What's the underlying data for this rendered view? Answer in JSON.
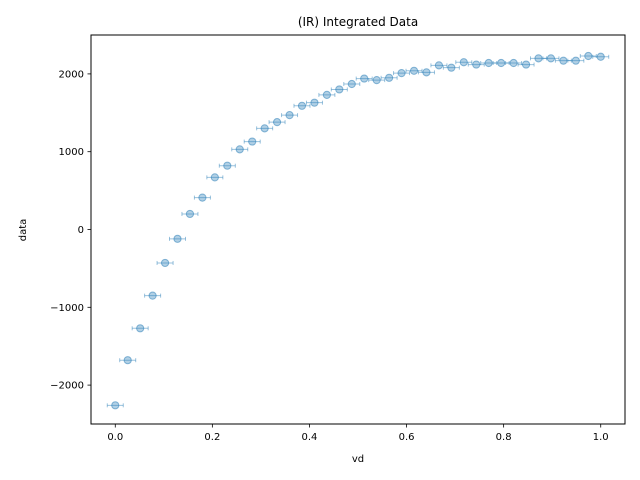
{
  "chart_data": {
    "type": "scatter",
    "title": "(IR) Integrated Data",
    "xlabel": "vd",
    "ylabel": "data",
    "xlim": [
      -0.05,
      1.05
    ],
    "ylim": [
      -2500,
      2500
    ],
    "xticks": [
      0.0,
      0.2,
      0.4,
      0.6,
      0.8,
      1.0
    ],
    "xtick_labels": [
      "0.0",
      "0.2",
      "0.4",
      "0.6",
      "0.8",
      "1.0"
    ],
    "yticks": [
      -2000,
      -1000,
      0,
      1000,
      2000
    ],
    "ytick_labels": [
      "−2000",
      "−1000",
      "0",
      "1000",
      "2000"
    ],
    "grid": false,
    "marker_color": "#1f77b4",
    "error_bars": true,
    "x": [
      0.0,
      0.0256,
      0.0513,
      0.0769,
      0.1026,
      0.1282,
      0.1538,
      0.1795,
      0.2051,
      0.2308,
      0.2564,
      0.2821,
      0.3077,
      0.3333,
      0.359,
      0.3846,
      0.4103,
      0.4359,
      0.4615,
      0.4872,
      0.5128,
      0.5385,
      0.5641,
      0.5897,
      0.6154,
      0.641,
      0.6667,
      0.6923,
      0.7179,
      0.7436,
      0.7692,
      0.7949,
      0.8205,
      0.8462,
      0.8718,
      0.8974,
      0.9231,
      0.9487,
      0.9744,
      1.0
    ],
    "y": [
      -2260,
      -1680,
      -1270,
      -850,
      -430,
      -120,
      200,
      410,
      670,
      820,
      1030,
      1130,
      1300,
      1380,
      1470,
      1590,
      1630,
      1730,
      1800,
      1870,
      1940,
      1920,
      1950,
      2010,
      2040,
      2020,
      2110,
      2080,
      2150,
      2120,
      2140,
      2140,
      2140,
      2120,
      2200,
      2200,
      2170,
      2170,
      2230,
      2220
    ]
  }
}
